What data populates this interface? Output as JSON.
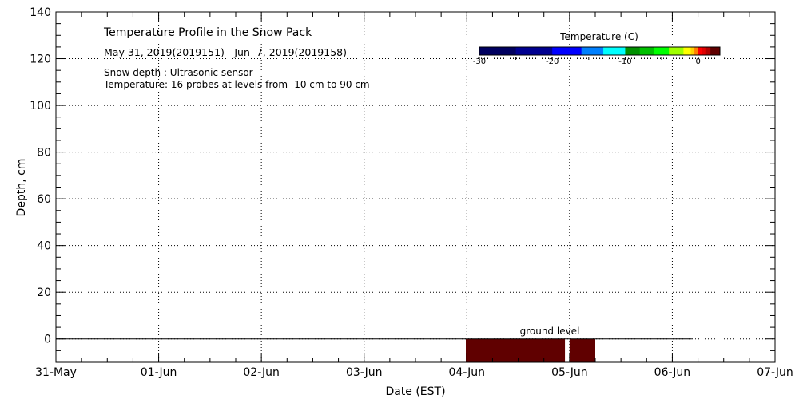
{
  "chart_data": {
    "type": "heatmap",
    "title": "Temperature Profile in the Snow Pack",
    "subtitle": "May 31, 2019(2019151) - Jun  7, 2019(2019158)",
    "notes": [
      "Snow depth : Ultrasonic sensor",
      "Temperature: 16 probes at levels from -10 cm to 90 cm"
    ],
    "xlabel": "Date (EST)",
    "ylabel": "Depth, cm",
    "xlim_days": [
      0,
      7
    ],
    "x_tick_labels": [
      "31-May",
      "01-Jun",
      "02-Jun",
      "03-Jun",
      "04-Jun",
      "05-Jun",
      "06-Jun",
      "07-Jun"
    ],
    "ylim": [
      -10,
      140
    ],
    "y_ticks": [
      0,
      20,
      40,
      60,
      80,
      100,
      120,
      140
    ],
    "grid": true,
    "ground_level": {
      "label": "ground level",
      "y": 0,
      "x_start_day": 0,
      "x_end_day": 6.19
    },
    "cells": [
      {
        "x_start_day": 3.99,
        "x_end_day": 4.955,
        "y_bottom": -10,
        "y_top": 0,
        "temperature": 2.5,
        "color": "#600000"
      },
      {
        "x_start_day": 5.0,
        "x_end_day": 5.25,
        "y_bottom": -10,
        "y_top": 0,
        "temperature": 2.5,
        "color": "#600000"
      }
    ],
    "colorbar": {
      "title": "Temperature (C)",
      "range": [
        -30,
        3
      ],
      "tick_labels": [
        -30,
        -20,
        -10,
        0
      ],
      "legend_position": "top-right",
      "segments": [
        {
          "from": -30,
          "to": -25,
          "color": "#000060"
        },
        {
          "from": -25,
          "to": -20,
          "color": "#000090"
        },
        {
          "from": -20,
          "to": -16,
          "color": "#0000ff"
        },
        {
          "from": -16,
          "to": -13,
          "color": "#0080ff"
        },
        {
          "from": -13,
          "to": -10,
          "color": "#00ffff"
        },
        {
          "from": -10,
          "to": -8,
          "color": "#009000"
        },
        {
          "from": -8,
          "to": -6,
          "color": "#00c000"
        },
        {
          "from": -6,
          "to": -4,
          "color": "#00ff00"
        },
        {
          "from": -4,
          "to": -2,
          "color": "#a0ff00"
        },
        {
          "from": -2,
          "to": -1,
          "color": "#ffff00"
        },
        {
          "from": -1,
          "to": -0.5,
          "color": "#ffd000"
        },
        {
          "from": -0.5,
          "to": 0,
          "color": "#ff8000"
        },
        {
          "from": 0,
          "to": 0.5,
          "color": "#ff0000"
        },
        {
          "from": 0.5,
          "to": 1,
          "color": "#e00000"
        },
        {
          "from": 1,
          "to": 1.7,
          "color": "#b00000"
        },
        {
          "from": 1.7,
          "to": 3,
          "color": "#600000"
        }
      ]
    }
  }
}
